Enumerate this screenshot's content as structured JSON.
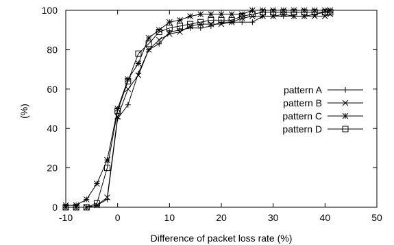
{
  "chart_data": {
    "type": "line",
    "title": "",
    "xlabel": "Difference of packet loss rate (%)",
    "ylabel": "(%)",
    "xlim": [
      -10,
      50
    ],
    "ylim": [
      0,
      100
    ],
    "xticks": [
      -10,
      0,
      10,
      20,
      30,
      40,
      50
    ],
    "yticks": [
      0,
      20,
      40,
      60,
      80,
      100
    ],
    "grid": false,
    "legend_position": "right",
    "series": [
      {
        "name": "pattern A",
        "marker": "plus",
        "x": [
          -10,
          -8,
          -6,
          -4,
          -2,
          0,
          2,
          4,
          6,
          8,
          10,
          12,
          14,
          16,
          18,
          20,
          22,
          24,
          26,
          28,
          30,
          32,
          34,
          36,
          38,
          40,
          41
        ],
        "y": [
          0,
          0,
          0,
          1,
          4,
          45,
          52,
          68,
          80,
          83,
          89,
          90,
          91,
          91,
          92,
          94,
          94,
          94,
          94,
          97,
          97,
          97,
          97,
          97,
          98,
          99,
          100
        ]
      },
      {
        "name": "pattern B",
        "marker": "cross",
        "x": [
          -10,
          -8,
          -6,
          -4,
          -2,
          0,
          2,
          4,
          6,
          8,
          10,
          12,
          14,
          16,
          18,
          20,
          22,
          24,
          26,
          28,
          30,
          32,
          34,
          36,
          38,
          40,
          41
        ],
        "y": [
          0,
          0,
          0,
          1,
          5,
          46,
          60,
          67,
          80,
          85,
          88,
          89,
          92,
          93,
          93,
          93,
          94,
          96,
          97,
          97,
          97,
          98,
          97,
          97,
          97,
          97,
          98
        ]
      },
      {
        "name": "pattern C",
        "marker": "star",
        "x": [
          -10,
          -8,
          -6,
          -4,
          -2,
          0,
          2,
          4,
          6,
          8,
          10,
          12,
          14,
          16,
          18,
          20,
          22,
          24,
          26,
          28,
          30,
          32,
          34,
          36,
          38,
          40,
          41
        ],
        "y": [
          1,
          1,
          4,
          12,
          24,
          50,
          65,
          73,
          86,
          90,
          94,
          95,
          97,
          98,
          98,
          98,
          98,
          98,
          100,
          100,
          100,
          100,
          100,
          100,
          100,
          100,
          100
        ]
      },
      {
        "name": "pattern D",
        "marker": "square",
        "x": [
          -10,
          -8,
          -6,
          -4,
          -2,
          0,
          2,
          4,
          6,
          8,
          10,
          12,
          14,
          16,
          18,
          20,
          22,
          24,
          26,
          28,
          30,
          32,
          34,
          36,
          38,
          40,
          41
        ],
        "y": [
          0,
          0,
          0,
          2,
          20,
          49,
          64,
          78,
          83,
          89,
          91,
          92,
          93,
          94,
          95,
          95,
          95,
          97,
          98,
          99,
          99,
          99,
          99,
          99,
          99,
          99,
          99
        ]
      }
    ]
  }
}
